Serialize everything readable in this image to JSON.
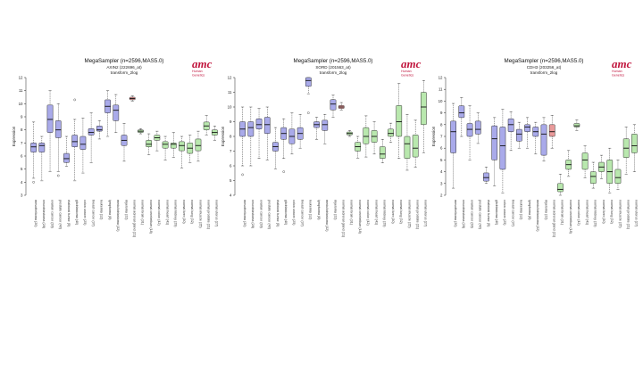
{
  "colors": {
    "blue": "#a9aaea",
    "red": "#e99a9a",
    "green": "#b9e8ae",
    "stroke": "#222222"
  },
  "logo": {
    "mark": "amc",
    "line1": "Human",
    "line2": "Genetics"
  },
  "categories": [
    "mesothelioma (20)",
    "neuroblastoma (28)",
    "ovarian cancer (28)",
    "prostate cancer (40)",
    "rhabdoid tumor (5)",
    "glioblastoma (40)",
    "colon cancer (25)",
    "breast cancer (37)",
    "leukemia (12)",
    "lymphoma (8)",
    "medulloblastoma (32)",
    "myeloma (22)",
    "normal adrenal gland (21)",
    "normal brain (31)",
    "normal cerebellum (18)",
    "normal colon (42)",
    "normal heart (41)",
    "normal kidney (29)",
    "normal liver (30)",
    "normal lung (32)",
    "normal muscle (25)",
    "normal prostate (21)",
    "normal uterus (27)"
  ],
  "groups": [
    "blue",
    "blue",
    "blue",
    "blue",
    "blue",
    "blue",
    "blue",
    "blue",
    "blue",
    "blue",
    "blue",
    "blue",
    "red",
    "green",
    "green",
    "green",
    "green",
    "green",
    "green",
    "green",
    "green",
    "green",
    "green"
  ],
  "chart_data": [
    {
      "type": "boxplot",
      "title": "MegaSampler (n=2596,MAS5.0)",
      "subtitle_line1": "AXIN2 (222696_at)",
      "subtitle_line2": "transform_2log",
      "ylabel": "Expression",
      "ylim": [
        3,
        12
      ],
      "yticks": [
        3,
        4,
        5,
        6,
        7,
        8,
        9,
        10,
        11,
        12
      ],
      "boxes": [
        {
          "min": 4.3,
          "q1": 6.3,
          "med": 6.7,
          "q3": 7.0,
          "max": 8.6,
          "out": [
            4.0
          ]
        },
        {
          "min": 4.1,
          "q1": 6.3,
          "med": 6.8,
          "q3": 7.0,
          "max": 7.5,
          "out": []
        },
        {
          "min": 4.8,
          "q1": 7.8,
          "med": 8.8,
          "q3": 9.9,
          "max": 11.0,
          "out": []
        },
        {
          "min": 4.8,
          "q1": 7.4,
          "med": 8.0,
          "q3": 8.7,
          "max": 10.0,
          "out": [
            4.5
          ]
        },
        {
          "min": 5.2,
          "q1": 5.5,
          "med": 5.8,
          "q3": 6.2,
          "max": 7.5,
          "out": []
        },
        {
          "min": 4.1,
          "q1": 6.7,
          "med": 7.1,
          "q3": 7.6,
          "max": 8.8,
          "out": [
            10.3
          ]
        },
        {
          "min": 4.7,
          "q1": 6.5,
          "med": 6.9,
          "q3": 7.5,
          "max": 8.9,
          "out": []
        },
        {
          "min": 5.5,
          "q1": 7.6,
          "med": 7.8,
          "q3": 8.1,
          "max": 9.3,
          "out": []
        },
        {
          "min": 7.3,
          "q1": 7.9,
          "med": 8.0,
          "q3": 8.3,
          "max": 8.7,
          "out": []
        },
        {
          "min": 7.5,
          "q1": 9.3,
          "med": 9.8,
          "q3": 10.3,
          "max": 11.0,
          "out": []
        },
        {
          "min": 7.8,
          "q1": 8.7,
          "med": 9.5,
          "q3": 9.9,
          "max": 10.7,
          "out": []
        },
        {
          "min": 5.6,
          "q1": 6.8,
          "med": 7.2,
          "q3": 7.6,
          "max": 8.5,
          "out": []
        },
        {
          "min": 10.2,
          "q1": 10.3,
          "med": 10.4,
          "q3": 10.5,
          "max": 10.6,
          "out": []
        },
        {
          "min": 7.7,
          "q1": 7.8,
          "med": 7.9,
          "q3": 8.0,
          "max": 8.1,
          "out": []
        },
        {
          "min": 6.1,
          "q1": 6.7,
          "med": 6.9,
          "q3": 7.2,
          "max": 7.7,
          "out": []
        },
        {
          "min": 6.4,
          "q1": 7.2,
          "med": 7.4,
          "q3": 7.6,
          "max": 7.9,
          "out": []
        },
        {
          "min": 5.7,
          "q1": 6.6,
          "med": 6.9,
          "q3": 7.1,
          "max": 7.5,
          "out": []
        },
        {
          "min": 5.9,
          "q1": 6.6,
          "med": 6.9,
          "q3": 7.0,
          "max": 7.8,
          "out": []
        },
        {
          "min": 5.1,
          "q1": 6.4,
          "med": 6.8,
          "q3": 7.1,
          "max": 7.5,
          "out": []
        },
        {
          "min": 5.5,
          "q1": 6.2,
          "med": 6.6,
          "q3": 7.0,
          "max": 7.6,
          "out": []
        },
        {
          "min": 5.6,
          "q1": 6.4,
          "med": 6.8,
          "q3": 7.3,
          "max": 7.9,
          "out": []
        },
        {
          "min": 7.6,
          "q1": 8.0,
          "med": 8.3,
          "q3": 8.6,
          "max": 9.1,
          "out": []
        },
        {
          "min": 7.2,
          "q1": 7.6,
          "med": 7.8,
          "q3": 8.0,
          "max": 8.3,
          "out": []
        }
      ]
    },
    {
      "type": "boxplot",
      "title": "MegaSampler (n=2596,MAS5.0)",
      "subtitle_line1": "SORD (201563_at)",
      "subtitle_line2": "transform_2log",
      "ylabel": "Expression",
      "ylim": [
        4,
        12
      ],
      "yticks": [
        4,
        5,
        6,
        7,
        8,
        9,
        10,
        11,
        12
      ],
      "boxes": [
        {
          "min": 6.0,
          "q1": 8.0,
          "med": 8.5,
          "q3": 9.0,
          "max": 10.0,
          "out": [
            5.4
          ]
        },
        {
          "min": 6.0,
          "q1": 8.0,
          "med": 8.6,
          "q3": 9.0,
          "max": 10.0,
          "out": []
        },
        {
          "min": 6.5,
          "q1": 8.5,
          "med": 8.8,
          "q3": 9.2,
          "max": 9.9,
          "out": []
        },
        {
          "min": 6.4,
          "q1": 8.2,
          "med": 8.8,
          "q3": 9.3,
          "max": 10.0,
          "out": []
        },
        {
          "min": 5.8,
          "q1": 7.0,
          "med": 7.3,
          "q3": 7.6,
          "max": 8.6,
          "out": []
        },
        {
          "min": 6.5,
          "q1": 7.8,
          "med": 8.2,
          "q3": 8.6,
          "max": 9.2,
          "out": [
            5.6
          ]
        },
        {
          "min": 6.8,
          "q1": 7.5,
          "med": 8.0,
          "q3": 8.5,
          "max": 9.6,
          "out": []
        },
        {
          "min": 7.2,
          "q1": 7.8,
          "med": 8.2,
          "q3": 8.6,
          "max": 9.5,
          "out": []
        },
        {
          "min": 10.9,
          "q1": 11.4,
          "med": 11.8,
          "q3": 12.0,
          "max": 12.0,
          "out": [
            9.6
          ]
        },
        {
          "min": 7.8,
          "q1": 8.6,
          "med": 8.8,
          "q3": 9.0,
          "max": 9.3,
          "out": []
        },
        {
          "min": 7.5,
          "q1": 8.4,
          "med": 8.8,
          "q3": 9.1,
          "max": 9.5,
          "out": []
        },
        {
          "min": 9.3,
          "q1": 9.8,
          "med": 10.2,
          "q3": 10.5,
          "max": 10.8,
          "out": []
        },
        {
          "min": 9.8,
          "q1": 9.9,
          "med": 10.0,
          "q3": 10.1,
          "max": 10.3,
          "out": []
        },
        {
          "min": 8.0,
          "q1": 8.1,
          "med": 8.2,
          "q3": 8.3,
          "max": 8.4,
          "out": []
        },
        {
          "min": 6.5,
          "q1": 7.0,
          "med": 7.3,
          "q3": 7.6,
          "max": 8.0,
          "out": []
        },
        {
          "min": 6.6,
          "q1": 7.5,
          "med": 8.0,
          "q3": 8.6,
          "max": 9.4,
          "out": []
        },
        {
          "min": 6.8,
          "q1": 7.6,
          "med": 8.0,
          "q3": 8.4,
          "max": 9.0,
          "out": []
        },
        {
          "min": 6.2,
          "q1": 6.5,
          "med": 6.8,
          "q3": 7.3,
          "max": 7.8,
          "out": []
        },
        {
          "min": 7.6,
          "q1": 8.0,
          "med": 8.2,
          "q3": 8.5,
          "max": 8.9,
          "out": []
        },
        {
          "min": 6.5,
          "q1": 8.0,
          "med": 9.0,
          "q3": 10.1,
          "max": 11.6,
          "out": []
        },
        {
          "min": 5.7,
          "q1": 6.5,
          "med": 7.5,
          "q3": 8.0,
          "max": 9.5,
          "out": []
        },
        {
          "min": 5.9,
          "q1": 6.6,
          "med": 7.2,
          "q3": 8.1,
          "max": 9.1,
          "out": []
        },
        {
          "min": 6.9,
          "q1": 8.8,
          "med": 10.0,
          "q3": 11.0,
          "max": 11.8,
          "out": []
        }
      ]
    },
    {
      "type": "boxplot",
      "title": "MegaSampler (n=2596,MAS5.0)",
      "subtitle_line1": "CDH3 (203256_at)",
      "subtitle_line2": "transform_2log",
      "ylabel": "Expression",
      "ylim": [
        2,
        12
      ],
      "yticks": [
        2,
        3,
        4,
        5,
        6,
        7,
        8,
        9,
        10,
        11,
        12
      ],
      "boxes": [
        {
          "min": 2.6,
          "q1": 5.6,
          "med": 7.4,
          "q3": 8.3,
          "max": 9.8,
          "out": []
        },
        {
          "min": 7.0,
          "q1": 8.6,
          "med": 9.0,
          "q3": 9.6,
          "max": 10.3,
          "out": []
        },
        {
          "min": 5.0,
          "q1": 7.0,
          "med": 7.6,
          "q3": 8.1,
          "max": 9.6,
          "out": []
        },
        {
          "min": 6.4,
          "q1": 7.2,
          "med": 7.6,
          "q3": 8.3,
          "max": 9.0,
          "out": []
        },
        {
          "min": 3.0,
          "q1": 3.2,
          "med": 3.5,
          "q3": 3.9,
          "max": 4.4,
          "out": []
        },
        {
          "min": 2.8,
          "q1": 5.0,
          "med": 6.8,
          "q3": 7.9,
          "max": 8.6,
          "out": []
        },
        {
          "min": 2.2,
          "q1": 4.2,
          "med": 6.2,
          "q3": 7.8,
          "max": 9.3,
          "out": []
        },
        {
          "min": 5.8,
          "q1": 7.4,
          "med": 8.0,
          "q3": 8.5,
          "max": 9.1,
          "out": []
        },
        {
          "min": 6.0,
          "q1": 6.6,
          "med": 7.2,
          "q3": 7.6,
          "max": 8.2,
          "out": []
        },
        {
          "min": 6.0,
          "q1": 7.4,
          "med": 7.8,
          "q3": 8.0,
          "max": 8.6,
          "out": []
        },
        {
          "min": 5.5,
          "q1": 7.0,
          "med": 7.4,
          "q3": 7.8,
          "max": 8.2,
          "out": []
        },
        {
          "min": 4.9,
          "q1": 5.4,
          "med": 7.2,
          "q3": 8.0,
          "max": 8.6,
          "out": []
        },
        {
          "min": 6.0,
          "q1": 7.0,
          "med": 7.4,
          "q3": 8.0,
          "max": 8.8,
          "out": []
        },
        {
          "min": 2.0,
          "q1": 2.3,
          "med": 2.5,
          "q3": 3.0,
          "max": 3.8,
          "out": []
        },
        {
          "min": 3.6,
          "q1": 4.2,
          "med": 4.6,
          "q3": 5.0,
          "max": 5.8,
          "out": []
        },
        {
          "min": 7.5,
          "q1": 7.8,
          "med": 7.9,
          "q3": 8.1,
          "max": 8.4,
          "out": []
        },
        {
          "min": 3.5,
          "q1": 4.2,
          "med": 5.0,
          "q3": 5.6,
          "max": 6.2,
          "out": []
        },
        {
          "min": 2.6,
          "q1": 3.0,
          "med": 3.6,
          "q3": 4.0,
          "max": 4.8,
          "out": []
        },
        {
          "min": 3.4,
          "q1": 4.0,
          "med": 4.4,
          "q3": 4.8,
          "max": 5.4,
          "out": []
        },
        {
          "min": 2.2,
          "q1": 3.0,
          "med": 4.0,
          "q3": 5.0,
          "max": 6.0,
          "out": []
        },
        {
          "min": 2.5,
          "q1": 3.0,
          "med": 3.5,
          "q3": 4.2,
          "max": 5.0,
          "out": []
        },
        {
          "min": 3.8,
          "q1": 5.2,
          "med": 6.0,
          "q3": 6.8,
          "max": 7.8,
          "out": []
        },
        {
          "min": 4.0,
          "q1": 5.6,
          "med": 6.2,
          "q3": 7.2,
          "max": 8.0,
          "out": []
        }
      ]
    }
  ]
}
